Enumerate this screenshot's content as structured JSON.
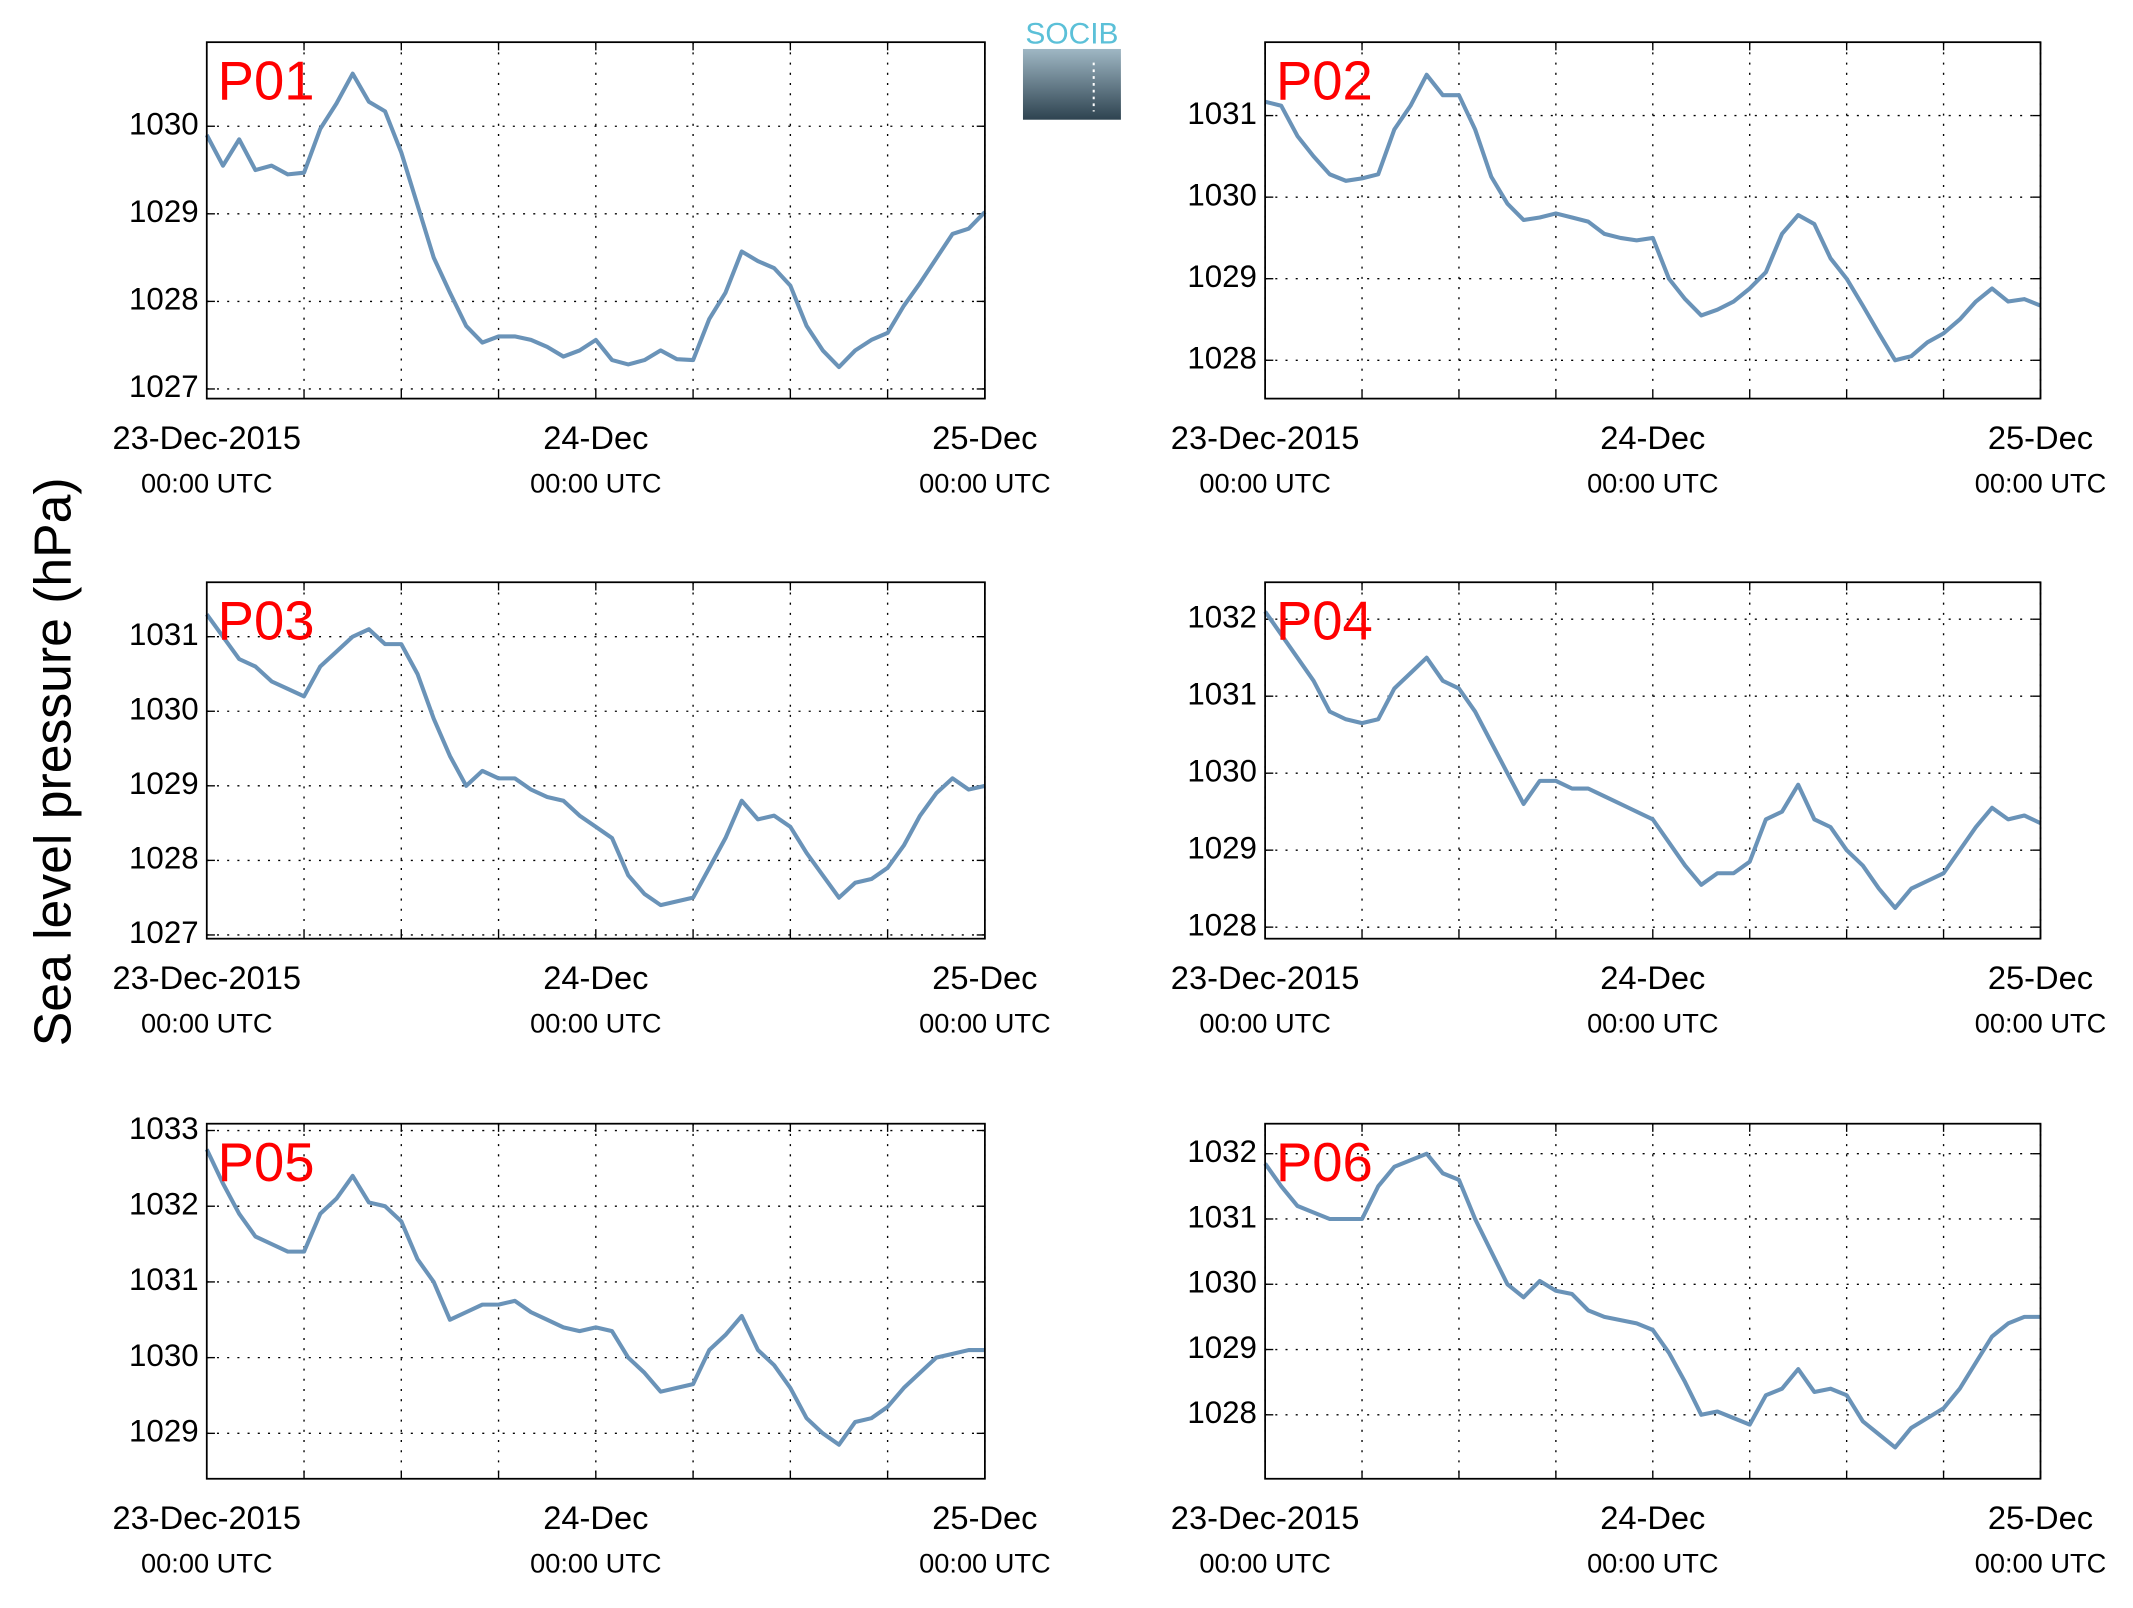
{
  "ylabel": "Sea level pressure (hPa)",
  "logo": "SOCIB",
  "chart_data": [
    {
      "type": "line",
      "title": "P01",
      "title_color": "#ff0000",
      "color": "#6a93b8",
      "grid": true,
      "xlim": [
        0,
        48
      ],
      "ylim": [
        1026.89,
        1030.96
      ],
      "yticks": [
        1027,
        1028,
        1029,
        1030
      ],
      "xticks": [
        {
          "value": 0,
          "label": "23-Dec-2015",
          "sublabel": "00:00 UTC"
        },
        {
          "value": 6,
          "label": null
        },
        {
          "value": 12,
          "label": null
        },
        {
          "value": 18,
          "label": null
        },
        {
          "value": 24,
          "label": "24-Dec",
          "sublabel": "00:00 UTC"
        },
        {
          "value": 30,
          "label": null
        },
        {
          "value": 36,
          "label": null
        },
        {
          "value": 42,
          "label": null
        },
        {
          "value": 48,
          "label": "25-Dec",
          "sublabel": "00:00 UTC"
        }
      ],
      "x": [
        0,
        1,
        2,
        3,
        4,
        5,
        6,
        7,
        8,
        9,
        10,
        11,
        12,
        13,
        14,
        15,
        16,
        17,
        18,
        19,
        20,
        21,
        22,
        23,
        24,
        25,
        26,
        27,
        28,
        29,
        30,
        31,
        32,
        33,
        34,
        35,
        36,
        37,
        38,
        39,
        40,
        41,
        42,
        43,
        44,
        45,
        46,
        47,
        48
      ],
      "values": [
        1029.9,
        1029.55,
        1029.85,
        1029.5,
        1029.55,
        1029.45,
        1029.47,
        1029.97,
        1030.26,
        1030.6,
        1030.28,
        1030.17,
        1029.7,
        1029.1,
        1028.5,
        1028.1,
        1027.72,
        1027.53,
        1027.6,
        1027.6,
        1027.56,
        1027.48,
        1027.37,
        1027.44,
        1027.56,
        1027.33,
        1027.28,
        1027.33,
        1027.44,
        1027.34,
        1027.33,
        1027.8,
        1028.1,
        1028.57,
        1028.46,
        1028.38,
        1028.18,
        1027.72,
        1027.44,
        1027.25,
        1027.44,
        1027.56,
        1027.64,
        1027.95,
        1028.21,
        1028.49,
        1028.77,
        1028.83,
        1029.02
      ]
    },
    {
      "type": "line",
      "title": "P02",
      "title_color": "#ff0000",
      "color": "#6a93b8",
      "grid": true,
      "xlim": [
        0,
        48
      ],
      "ylim": [
        1027.53,
        1031.9
      ],
      "yticks": [
        1028,
        1029,
        1030,
        1031
      ],
      "xticks": [
        {
          "value": 0,
          "label": "23-Dec-2015",
          "sublabel": "00:00 UTC"
        },
        {
          "value": 6,
          "label": null
        },
        {
          "value": 12,
          "label": null
        },
        {
          "value": 18,
          "label": null
        },
        {
          "value": 24,
          "label": "24-Dec",
          "sublabel": "00:00 UTC"
        },
        {
          "value": 30,
          "label": null
        },
        {
          "value": 36,
          "label": null
        },
        {
          "value": 42,
          "label": null
        },
        {
          "value": 48,
          "label": "25-Dec",
          "sublabel": "00:00 UTC"
        }
      ],
      "x": [
        0,
        1,
        2,
        3,
        4,
        5,
        6,
        7,
        8,
        9,
        10,
        11,
        12,
        13,
        14,
        15,
        16,
        17,
        18,
        19,
        20,
        21,
        22,
        23,
        24,
        25,
        26,
        27,
        28,
        29,
        30,
        31,
        32,
        33,
        34,
        35,
        36,
        37,
        38,
        39,
        40,
        41,
        42,
        43,
        44,
        45,
        46,
        47,
        48
      ],
      "values": [
        1031.17,
        1031.12,
        1030.75,
        1030.5,
        1030.28,
        1030.2,
        1030.23,
        1030.28,
        1030.83,
        1031.12,
        1031.5,
        1031.25,
        1031.25,
        1030.83,
        1030.25,
        1029.92,
        1029.72,
        1029.75,
        1029.8,
        1029.75,
        1029.7,
        1029.55,
        1029.5,
        1029.47,
        1029.5,
        1029.0,
        1028.75,
        1028.55,
        1028.62,
        1028.72,
        1028.88,
        1029.08,
        1029.55,
        1029.78,
        1029.67,
        1029.25,
        1029.0,
        1028.67,
        1028.33,
        1028.0,
        1028.05,
        1028.22,
        1028.33,
        1028.5,
        1028.72,
        1028.88,
        1028.72,
        1028.75,
        1028.67
      ]
    },
    {
      "type": "line",
      "title": "P03",
      "title_color": "#ff0000",
      "color": "#6a93b8",
      "grid": true,
      "xlim": [
        0,
        48
      ],
      "ylim": [
        1026.95,
        1031.73
      ],
      "yticks": [
        1027,
        1028,
        1029,
        1030,
        1031
      ],
      "xticks": [
        {
          "value": 0,
          "label": "23-Dec-2015",
          "sublabel": "00:00 UTC"
        },
        {
          "value": 6,
          "label": null
        },
        {
          "value": 12,
          "label": null
        },
        {
          "value": 18,
          "label": null
        },
        {
          "value": 24,
          "label": "24-Dec",
          "sublabel": "00:00 UTC"
        },
        {
          "value": 30,
          "label": null
        },
        {
          "value": 36,
          "label": null
        },
        {
          "value": 42,
          "label": null
        },
        {
          "value": 48,
          "label": "25-Dec",
          "sublabel": "00:00 UTC"
        }
      ],
      "x": [
        0,
        1,
        2,
        3,
        4,
        5,
        6,
        7,
        8,
        9,
        10,
        11,
        12,
        13,
        14,
        15,
        16,
        17,
        18,
        19,
        20,
        21,
        22,
        23,
        24,
        25,
        26,
        27,
        28,
        29,
        30,
        31,
        32,
        33,
        34,
        35,
        36,
        37,
        38,
        39,
        40,
        41,
        42,
        43,
        44,
        45,
        46,
        47,
        48
      ],
      "values": [
        1031.3,
        1031.0,
        1030.7,
        1030.6,
        1030.4,
        1030.3,
        1030.2,
        1030.6,
        1030.8,
        1031.0,
        1031.1,
        1030.9,
        1030.9,
        1030.5,
        1029.9,
        1029.4,
        1029.0,
        1029.2,
        1029.1,
        1029.1,
        1028.95,
        1028.85,
        1028.8,
        1028.6,
        1028.45,
        1028.3,
        1027.8,
        1027.55,
        1027.4,
        1027.45,
        1027.5,
        1027.9,
        1028.3,
        1028.8,
        1028.55,
        1028.6,
        1028.45,
        1028.1,
        1027.8,
        1027.5,
        1027.7,
        1027.75,
        1027.9,
        1028.2,
        1028.6,
        1028.9,
        1029.1,
        1028.95,
        1029.0
      ]
    },
    {
      "type": "line",
      "title": "P04",
      "title_color": "#ff0000",
      "color": "#6a93b8",
      "grid": true,
      "xlim": [
        0,
        48
      ],
      "ylim": [
        1027.85,
        1032.48
      ],
      "yticks": [
        1028,
        1029,
        1030,
        1031,
        1032
      ],
      "xticks": [
        {
          "value": 0,
          "label": "23-Dec-2015",
          "sublabel": "00:00 UTC"
        },
        {
          "value": 6,
          "label": null
        },
        {
          "value": 12,
          "label": null
        },
        {
          "value": 18,
          "label": null
        },
        {
          "value": 24,
          "label": "24-Dec",
          "sublabel": "00:00 UTC"
        },
        {
          "value": 30,
          "label": null
        },
        {
          "value": 36,
          "label": null
        },
        {
          "value": 42,
          "label": null
        },
        {
          "value": 48,
          "label": "25-Dec",
          "sublabel": "00:00 UTC"
        }
      ],
      "x": [
        0,
        1,
        2,
        3,
        4,
        5,
        6,
        7,
        8,
        9,
        10,
        11,
        12,
        13,
        14,
        15,
        16,
        17,
        18,
        19,
        20,
        21,
        22,
        23,
        24,
        25,
        26,
        27,
        28,
        29,
        30,
        31,
        32,
        33,
        34,
        35,
        36,
        37,
        38,
        39,
        40,
        41,
        42,
        43,
        44,
        45,
        46,
        47,
        48
      ],
      "values": [
        1032.1,
        1031.8,
        1031.5,
        1031.2,
        1030.8,
        1030.7,
        1030.65,
        1030.7,
        1031.1,
        1031.3,
        1031.5,
        1031.2,
        1031.1,
        1030.8,
        1030.4,
        1030.0,
        1029.6,
        1029.9,
        1029.9,
        1029.8,
        1029.8,
        1029.7,
        1029.6,
        1029.5,
        1029.4,
        1029.1,
        1028.8,
        1028.55,
        1028.7,
        1028.7,
        1028.85,
        1029.4,
        1029.5,
        1029.85,
        1029.4,
        1029.3,
        1029.0,
        1028.8,
        1028.5,
        1028.25,
        1028.5,
        1028.6,
        1028.7,
        1029.0,
        1029.3,
        1029.55,
        1029.4,
        1029.45,
        1029.35
      ]
    },
    {
      "type": "line",
      "title": "P05",
      "title_color": "#ff0000",
      "color": "#6a93b8",
      "grid": true,
      "xlim": [
        0,
        48
      ],
      "ylim": [
        1028.4,
        1033.09
      ],
      "yticks": [
        1029,
        1030,
        1031,
        1032,
        1033
      ],
      "xticks": [
        {
          "value": 0,
          "label": "23-Dec-2015",
          "sublabel": "00:00 UTC"
        },
        {
          "value": 6,
          "label": null
        },
        {
          "value": 12,
          "label": null
        },
        {
          "value": 18,
          "label": null
        },
        {
          "value": 24,
          "label": "24-Dec",
          "sublabel": "00:00 UTC"
        },
        {
          "value": 30,
          "label": null
        },
        {
          "value": 36,
          "label": null
        },
        {
          "value": 42,
          "label": null
        },
        {
          "value": 48,
          "label": "25-Dec",
          "sublabel": "00:00 UTC"
        }
      ],
      "x": [
        0,
        1,
        2,
        3,
        4,
        5,
        6,
        7,
        8,
        9,
        10,
        11,
        12,
        13,
        14,
        15,
        16,
        17,
        18,
        19,
        20,
        21,
        22,
        23,
        24,
        25,
        26,
        27,
        28,
        29,
        30,
        31,
        32,
        33,
        34,
        35,
        36,
        37,
        38,
        39,
        40,
        41,
        42,
        43,
        44,
        45,
        46,
        47,
        48
      ],
      "values": [
        1032.75,
        1032.3,
        1031.9,
        1031.6,
        1031.5,
        1031.4,
        1031.4,
        1031.9,
        1032.1,
        1032.4,
        1032.05,
        1032.0,
        1031.8,
        1031.3,
        1031.0,
        1030.5,
        1030.6,
        1030.7,
        1030.7,
        1030.75,
        1030.6,
        1030.5,
        1030.4,
        1030.35,
        1030.4,
        1030.35,
        1030.0,
        1029.8,
        1029.55,
        1029.6,
        1029.65,
        1030.1,
        1030.3,
        1030.55,
        1030.1,
        1029.9,
        1029.6,
        1029.2,
        1029.0,
        1028.85,
        1029.15,
        1029.2,
        1029.35,
        1029.6,
        1029.8,
        1030.0,
        1030.05,
        1030.1,
        1030.1
      ]
    },
    {
      "type": "line",
      "title": "P06",
      "title_color": "#ff0000",
      "color": "#6a93b8",
      "grid": true,
      "xlim": [
        0,
        48
      ],
      "ylim": [
        1027.02,
        1032.46
      ],
      "yticks": [
        1028,
        1029,
        1030,
        1031,
        1032
      ],
      "xticks": [
        {
          "value": 0,
          "label": "23-Dec-2015",
          "sublabel": "00:00 UTC"
        },
        {
          "value": 6,
          "label": null
        },
        {
          "value": 12,
          "label": null
        },
        {
          "value": 18,
          "label": null
        },
        {
          "value": 24,
          "label": "24-Dec",
          "sublabel": "00:00 UTC"
        },
        {
          "value": 30,
          "label": null
        },
        {
          "value": 36,
          "label": null
        },
        {
          "value": 42,
          "label": null
        },
        {
          "value": 48,
          "label": "25-Dec",
          "sublabel": "00:00 UTC"
        }
      ],
      "x": [
        0,
        1,
        2,
        3,
        4,
        5,
        6,
        7,
        8,
        9,
        10,
        11,
        12,
        13,
        14,
        15,
        16,
        17,
        18,
        19,
        20,
        21,
        22,
        23,
        24,
        25,
        26,
        27,
        28,
        29,
        30,
        31,
        32,
        33,
        34,
        35,
        36,
        37,
        38,
        39,
        40,
        41,
        42,
        43,
        44,
        45,
        46,
        47,
        48
      ],
      "values": [
        1031.85,
        1031.5,
        1031.2,
        1031.1,
        1031.0,
        1031.0,
        1031.0,
        1031.5,
        1031.8,
        1031.9,
        1032.0,
        1031.7,
        1031.6,
        1031.0,
        1030.5,
        1030.0,
        1029.8,
        1030.05,
        1029.9,
        1029.85,
        1029.6,
        1029.5,
        1029.45,
        1029.4,
        1029.3,
        1028.95,
        1028.5,
        1028.0,
        1028.05,
        1027.95,
        1027.85,
        1028.3,
        1028.4,
        1028.7,
        1028.35,
        1028.4,
        1028.3,
        1027.9,
        1027.7,
        1027.5,
        1027.8,
        1027.95,
        1028.1,
        1028.4,
        1028.8,
        1029.2,
        1029.4,
        1029.5,
        1029.5
      ]
    }
  ]
}
